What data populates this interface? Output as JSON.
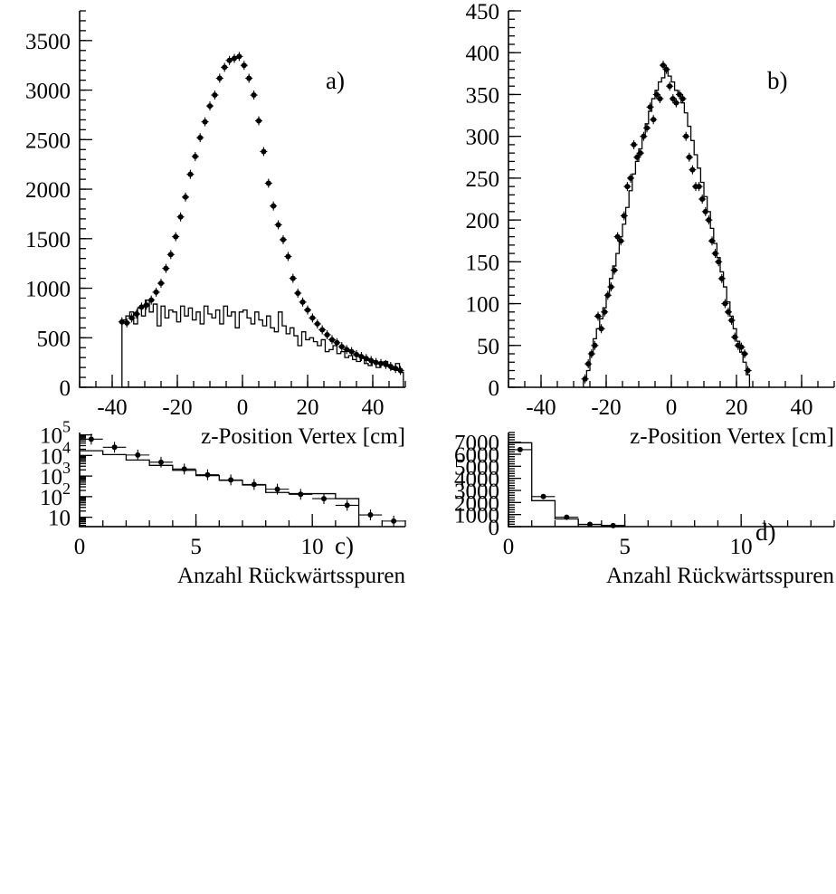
{
  "chart_data": [
    {
      "type": "scatter",
      "panel_label": "a)",
      "xlabel": "z-Position Vertex [cm]",
      "xlim": [
        -50,
        50
      ],
      "ylim": [
        0,
        3800
      ],
      "xticks": [
        -40,
        -20,
        0,
        20,
        40
      ],
      "yticks": [
        0,
        500,
        1000,
        1500,
        2000,
        2500,
        3000,
        3500
      ],
      "xtick_labels": [
        "-40",
        "-20",
        "0",
        "20",
        "40"
      ],
      "ytick_labels": [
        "0",
        "500",
        "1000",
        "1500",
        "2000",
        "2500",
        "3000",
        "3500"
      ],
      "bin_width": 1.2,
      "series": [
        {
          "style": "points",
          "x": [
            -37,
            -35.5,
            -34,
            -32.5,
            -31,
            -29.5,
            -28,
            -26.5,
            -25,
            -23.5,
            -22,
            -20.5,
            -19,
            -17.5,
            -16,
            -14.5,
            -13,
            -11.5,
            -10,
            -8.5,
            -7,
            -5.5,
            -4,
            -2.5,
            -1,
            0.5,
            2,
            3.5,
            5,
            6.5,
            8,
            9.5,
            11,
            12.5,
            14,
            15.5,
            17,
            18.5,
            20,
            21.5,
            23,
            24.5,
            26,
            27.5,
            29,
            30.5,
            32,
            33.5,
            35,
            36.5,
            38,
            39.5,
            41,
            42.5,
            44,
            45.5,
            47,
            48.5
          ],
          "y": [
            660,
            650,
            700,
            740,
            810,
            830,
            880,
            960,
            1050,
            1200,
            1340,
            1520,
            1720,
            1920,
            2150,
            2330,
            2520,
            2680,
            2840,
            2950,
            3120,
            3230,
            3300,
            3320,
            3340,
            3250,
            3120,
            2950,
            2690,
            2380,
            2060,
            1830,
            1640,
            1490,
            1320,
            1100,
            950,
            860,
            780,
            700,
            640,
            580,
            530,
            480,
            450,
            410,
            380,
            360,
            330,
            310,
            290,
            270,
            250,
            240,
            230,
            210,
            190,
            170
          ]
        },
        {
          "style": "hatched-histogram",
          "x": [
            -37,
            -35.8,
            -34.6,
            -33.4,
            -32.2,
            -31,
            -29.8,
            -28.6,
            -27.4,
            -26.2,
            -25,
            -23.8,
            -22.6,
            -21.4,
            -20.2,
            -19,
            -17.8,
            -16.6,
            -15.4,
            -14.2,
            -13,
            -11.8,
            -10.6,
            -9.4,
            -8.2,
            -7,
            -5.8,
            -4.6,
            -3.4,
            -2.2,
            -1,
            0.2,
            1.4,
            2.6,
            3.8,
            5,
            6.2,
            7.4,
            8.6,
            9.8,
            11,
            12.2,
            13.4,
            14.6,
            15.8,
            17,
            18.2,
            19.4,
            20.6,
            21.8,
            23,
            24.2,
            25.4,
            26.6,
            27.8,
            29,
            30.2,
            31.4,
            32.6,
            33.8,
            35,
            36.2,
            37.4,
            38.6,
            39.8,
            41,
            42.2,
            43.4,
            44.6,
            45.8,
            47,
            48.2
          ],
          "y": [
            680,
            720,
            760,
            640,
            800,
            720,
            880,
            760,
            840,
            620,
            820,
            700,
            780,
            760,
            660,
            820,
            720,
            800,
            680,
            760,
            640,
            820,
            740,
            700,
            780,
            640,
            820,
            720,
            760,
            600,
            760,
            780,
            700,
            640,
            760,
            680,
            620,
            720,
            600,
            560,
            760,
            620,
            540,
            600,
            520,
            420,
            560,
            480,
            500,
            460,
            420,
            480,
            360,
            380,
            420,
            340,
            360,
            300,
            320,
            280,
            260,
            300,
            240,
            220,
            250,
            200,
            230,
            260,
            210,
            180,
            240,
            150
          ]
        }
      ]
    },
    {
      "type": "scatter",
      "panel_label": "b)",
      "xlabel": "z-Position Vertex [cm]",
      "xlim": [
        -50,
        50
      ],
      "ylim": [
        0,
        450
      ],
      "xticks": [
        -40,
        -20,
        0,
        20,
        40
      ],
      "yticks": [
        0,
        50,
        100,
        150,
        200,
        250,
        300,
        350,
        400,
        450
      ],
      "xtick_labels": [
        "-40",
        "-20",
        "0",
        "20",
        "40"
      ],
      "ytick_labels": [
        "0",
        "50",
        "100",
        "150",
        "200",
        "250",
        "300",
        "350",
        "400",
        "450"
      ],
      "bin_width": 1,
      "series": [
        {
          "style": "points",
          "x": [
            -26.5,
            -25.5,
            -24.5,
            -23.5,
            -22.5,
            -21.5,
            -20.5,
            -19.5,
            -18.5,
            -17.5,
            -16.5,
            -15.5,
            -14.5,
            -13.5,
            -12.5,
            -11.5,
            -10.5,
            -9.5,
            -8.5,
            -7.5,
            -6.5,
            -5.5,
            -4.5,
            -3.5,
            -2.5,
            -1.5,
            -0.5,
            0.5,
            1.5,
            2.5,
            3.5,
            4.5,
            5.5,
            6.5,
            7.5,
            8.5,
            9.5,
            10.5,
            11.5,
            12.5,
            13.5,
            14.5,
            15.5,
            16.5,
            17.5,
            18.5,
            19.5,
            20.5,
            21.5,
            22.5,
            23.5
          ],
          "y": [
            10,
            28,
            40,
            50,
            85,
            70,
            90,
            110,
            120,
            140,
            180,
            175,
            205,
            240,
            250,
            290,
            275,
            280,
            300,
            310,
            335,
            320,
            350,
            345,
            385,
            380,
            360,
            345,
            340,
            350,
            345,
            300,
            275,
            260,
            240,
            240,
            225,
            210,
            200,
            175,
            160,
            150,
            130,
            100,
            90,
            80,
            60,
            50,
            48,
            40,
            20
          ]
        },
        {
          "style": "histogram",
          "x": [
            -27,
            -26,
            -25,
            -24,
            -23,
            -22,
            -21,
            -20,
            -19,
            -18,
            -17,
            -16,
            -15,
            -14,
            -13,
            -12,
            -11,
            -10,
            -9,
            -8,
            -7,
            -6,
            -5,
            -4,
            -3,
            -2,
            -1,
            0,
            1,
            2,
            3,
            4,
            5,
            6,
            7,
            8,
            9,
            10,
            11,
            12,
            13,
            14,
            15,
            16,
            17,
            18,
            19,
            20,
            21,
            22,
            23
          ],
          "y": [
            8,
            20,
            42,
            58,
            70,
            82,
            95,
            110,
            130,
            145,
            160,
            180,
            195,
            215,
            235,
            255,
            270,
            285,
            300,
            315,
            330,
            345,
            355,
            365,
            370,
            380,
            372,
            365,
            355,
            350,
            340,
            328,
            312,
            295,
            278,
            262,
            245,
            228,
            210,
            190,
            172,
            155,
            138,
            120,
            102,
            85,
            70,
            55,
            42,
            30,
            15
          ]
        }
      ]
    },
    {
      "type": "scatter",
      "panel_label": "c)",
      "xlabel": "Anzahl Rückwärtsspuren",
      "xlim": [
        0,
        14
      ],
      "ylim": [
        3.5,
        130000
      ],
      "log_y": true,
      "xticks": [
        0,
        5,
        10
      ],
      "xtick_labels": [
        "0",
        "5",
        "10"
      ],
      "yticks": [
        10,
        100,
        1000,
        10000,
        100000
      ],
      "ytick_labels": [
        {
          "base": "10",
          "exp": ""
        },
        {
          "base": "10",
          "exp": "2"
        },
        {
          "base": "10",
          "exp": "3"
        },
        {
          "base": "10",
          "exp": "4"
        },
        {
          "base": "10",
          "exp": "5"
        }
      ],
      "bin_width": 1,
      "series": [
        {
          "style": "points",
          "x": [
            0.5,
            1.5,
            2.5,
            3.5,
            4.5,
            5.5,
            6.5,
            7.5,
            8.5,
            9.5,
            10.5,
            11.5,
            12.5,
            13.5
          ],
          "y": [
            62000,
            25000,
            10500,
            4700,
            2200,
            1150,
            650,
            390,
            230,
            130,
            80,
            38,
            13,
            6.5
          ]
        },
        {
          "style": "hatched-histogram",
          "x": [
            0,
            1,
            2,
            3,
            4,
            5,
            6,
            7,
            8,
            9,
            10,
            11
          ],
          "y": [
            17000,
            11000,
            6000,
            3300,
            1900,
            1050,
            620,
            370,
            160,
            140,
            140,
            80
          ]
        }
      ]
    },
    {
      "type": "scatter",
      "panel_label": "d)",
      "xlabel": "Anzahl Rückwärtsspuren",
      "xlim": [
        0,
        14
      ],
      "ylim": [
        0,
        7800
      ],
      "xticks": [
        0,
        5,
        10
      ],
      "yticks": [
        0,
        1000,
        2000,
        3000,
        4000,
        5000,
        6000,
        7000
      ],
      "xtick_labels": [
        "0",
        "5",
        "10"
      ],
      "ytick_labels": [
        "0",
        "1000",
        "2000",
        "3000",
        "4000",
        "5000",
        "6000",
        "7000"
      ],
      "bin_width": 1,
      "series": [
        {
          "style": "points",
          "x": [
            0.5,
            1.5,
            2.5,
            3.5,
            4.5
          ],
          "y": [
            6380,
            2490,
            780,
            190,
            80
          ]
        },
        {
          "style": "histogram",
          "x": [
            0,
            1,
            2,
            3,
            4
          ],
          "y": [
            6950,
            2150,
            640,
            180,
            90
          ]
        }
      ]
    }
  ]
}
